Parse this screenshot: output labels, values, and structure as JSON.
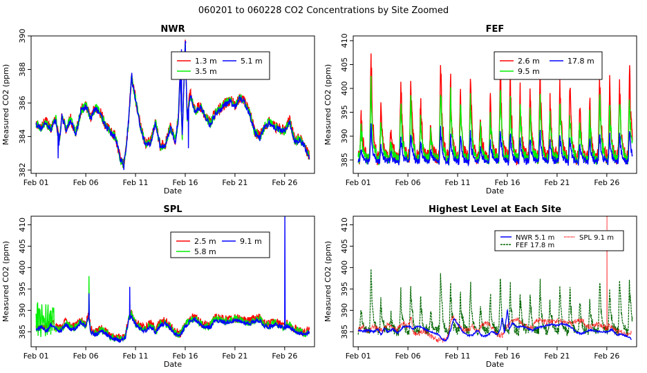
{
  "page_title": "060201  to  060228 CO2 Concentrations by Site Zoomed",
  "chart_data": [
    {
      "id": "nwr",
      "type": "line",
      "title": "NWR",
      "xlabel": "Date",
      "ylabel": "Measured CO2 (ppm)",
      "x_ticks": [
        "Feb 01",
        "Feb 06",
        "Feb 11",
        "Feb 16",
        "Feb 21",
        "Feb 26"
      ],
      "x_tick_days": [
        1,
        6,
        11,
        16,
        21,
        26
      ],
      "xlim": [
        0.5,
        29
      ],
      "ylim": [
        381.8,
        390
      ],
      "y_ticks": [
        382,
        384,
        386,
        388,
        390
      ],
      "legend": {
        "position": "top-right",
        "entries": [
          {
            "name": "1.3 m",
            "color": "#ff0000"
          },
          {
            "name": "5.1 m",
            "color": "#0000ff"
          },
          {
            "name": "3.5 m",
            "color": "#00ee00"
          }
        ]
      },
      "series": [
        {
          "name": "1.3 m",
          "color": "#ff0000",
          "offset": 0.08,
          "noise": 0.15
        },
        {
          "name": "3.5 m",
          "color": "#00ee00",
          "offset": 0.04,
          "noise": 0.1
        },
        {
          "name": "5.1 m",
          "color": "#0000ff",
          "offset": 0,
          "noise": 0
        }
      ],
      "x": [
        1,
        1.5,
        2,
        2.5,
        3,
        3.3,
        3.6,
        4,
        4.5,
        5,
        5.5,
        6,
        6.5,
        7,
        7.5,
        8,
        8.5,
        9,
        9.5,
        9.8,
        10,
        10.3,
        10.6,
        11,
        11.5,
        12,
        12.5,
        13,
        13.5,
        14,
        14.5,
        15,
        15.3,
        15.5,
        15.7,
        16,
        16.2,
        16.5,
        17,
        17.5,
        18,
        18.5,
        19,
        19.5,
        20,
        20.5,
        21,
        21.5,
        22,
        22.5,
        23,
        23.5,
        24,
        24.5,
        25,
        25.5,
        26,
        26.5,
        27,
        27.5,
        28,
        28.5
      ],
      "values": [
        384.7,
        384.5,
        384.8,
        384.4,
        385,
        383.6,
        385.2,
        384.4,
        385,
        384.1,
        385.5,
        385.8,
        385.1,
        385.7,
        385.3,
        384.6,
        384.2,
        383.9,
        382.6,
        382.3,
        383,
        384.9,
        387.5,
        386.2,
        384.5,
        383.5,
        383.6,
        384.8,
        383.3,
        383.5,
        384.5,
        383.7,
        385,
        387.8,
        384,
        389.6,
        385,
        386.5,
        385.4,
        385.8,
        385.2,
        384.7,
        385.3,
        385.6,
        385.9,
        386.1,
        385.8,
        386.3,
        386,
        385.3,
        384.2,
        383.9,
        384.6,
        384.8,
        384.5,
        384.4,
        384.3,
        384.9,
        383.7,
        383.8,
        383.4,
        382.7
      ],
      "spikes": [
        [
          3.2,
          382.7
        ],
        [
          9.8,
          382
        ],
        [
          10.6,
          387.8
        ],
        [
          15.6,
          389.2
        ],
        [
          16,
          389.7
        ],
        [
          16.3,
          383.3
        ]
      ]
    },
    {
      "id": "fef",
      "type": "line",
      "title": "FEF",
      "xlabel": "Date",
      "ylabel": "Measured CO2 (ppm)",
      "x_ticks": [
        "Feb 01",
        "Feb 06",
        "Feb 11",
        "Feb 16",
        "Feb 21",
        "Feb 26"
      ],
      "x_tick_days": [
        1,
        6,
        11,
        16,
        21,
        26
      ],
      "xlim": [
        0.5,
        29
      ],
      "ylim": [
        382.2,
        411
      ],
      "y_ticks": [
        385,
        390,
        395,
        400,
        405,
        410
      ],
      "legend": {
        "position": "top-right",
        "entries": [
          {
            "name": "2.6 m",
            "color": "#ff0000"
          },
          {
            "name": "17.8 m",
            "color": "#0000ff"
          },
          {
            "name": "9.5 m",
            "color": "#00ee00"
          }
        ]
      },
      "series": [
        {
          "name": "2.6 m",
          "color": "#ff0000",
          "scale": 1.0
        },
        {
          "name": "9.5 m",
          "color": "#00ee00",
          "scale": 0.75
        },
        {
          "name": "17.8 m",
          "color": "#0000ff",
          "scale": 0.35
        }
      ],
      "base": 384.2,
      "peak_days": [
        1.3,
        2.3,
        3.3,
        4.3,
        5.3,
        6.3,
        7.3,
        8.3,
        9.3,
        10.3,
        11.3,
        12.3,
        13.3,
        14.3,
        15.3,
        16.3,
        17.3,
        18.3,
        19.3,
        20.3,
        21.3,
        22.3,
        23.3,
        24.3,
        25.3,
        26.3,
        27.3,
        28.3
      ],
      "peak_heights": [
        10,
        24,
        12,
        6,
        17,
        20,
        14,
        8,
        22,
        18,
        16,
        19,
        9,
        14,
        21,
        18,
        15,
        16,
        19,
        13,
        18,
        17,
        12,
        14,
        20,
        17,
        19,
        22
      ]
    },
    {
      "id": "spl",
      "type": "line",
      "title": "SPL",
      "xlabel": "Date",
      "ylabel": "Measured CO2 (ppm)",
      "x_ticks": [
        "Feb 01",
        "Feb 06",
        "Feb 11",
        "Feb 16",
        "Feb 21",
        "Feb 26"
      ],
      "x_tick_days": [
        1,
        6,
        11,
        16,
        21,
        26
      ],
      "xlim": [
        0.5,
        29
      ],
      "ylim": [
        381.5,
        412
      ],
      "y_ticks": [
        385,
        390,
        395,
        400,
        405,
        410
      ],
      "legend": {
        "position": "top-right",
        "entries": [
          {
            "name": "2.5 m",
            "color": "#ff0000"
          },
          {
            "name": "9.1 m",
            "color": "#0000ff"
          },
          {
            "name": "5.8 m",
            "color": "#00ee00"
          }
        ]
      },
      "series": [
        {
          "name": "2.5 m",
          "color": "#ff0000",
          "offset": 0.6,
          "noise": 0.5
        },
        {
          "name": "5.8 m",
          "color": "#00ee00",
          "offset": 0.3,
          "noise": 0.4
        },
        {
          "name": "9.1 m",
          "color": "#0000ff",
          "offset": 0,
          "noise": 0
        }
      ],
      "x": [
        1,
        1.5,
        2,
        2.5,
        3,
        3.5,
        4,
        4.5,
        5,
        5.5,
        6,
        6.3,
        6.5,
        7,
        7.5,
        8,
        8.5,
        9,
        9.5,
        10,
        10.3,
        10.6,
        11,
        11.5,
        12,
        12.5,
        13,
        13.5,
        14,
        14.5,
        15,
        15.5,
        16,
        16.5,
        17,
        17.5,
        18,
        18.5,
        19,
        19.5,
        20,
        20.5,
        21,
        21.5,
        22,
        22.5,
        23,
        23.5,
        24,
        24.5,
        25,
        25.5,
        26,
        26.2,
        26.5,
        27,
        27.5,
        28,
        28.5
      ],
      "values": [
        385.3,
        386.2,
        385,
        386.5,
        385.5,
        385.2,
        386.8,
        385.5,
        385.7,
        387.2,
        386.2,
        388.5,
        385,
        384.3,
        385.1,
        384.6,
        383.6,
        383.2,
        382.9,
        383.8,
        387.5,
        388.6,
        386.7,
        385.6,
        385.2,
        386.4,
        384.8,
        386.6,
        386.9,
        385.7,
        384.4,
        384.1,
        386.3,
        387.5,
        387.9,
        386.6,
        386.1,
        386,
        387.8,
        387.5,
        387.2,
        387.4,
        387.6,
        387.4,
        387.1,
        386.9,
        387.6,
        387.6,
        386.3,
        386.2,
        386.8,
        386.3,
        385.7,
        386.4,
        386.1,
        385.2,
        384.8,
        384.2,
        384.8
      ],
      "spikes": [
        [
          10.4,
          395.5
        ],
        [
          6.3,
          394
        ],
        [
          26,
          412
        ]
      ],
      "green_burst": {
        "from": 1.0,
        "to": 2.8,
        "low": 383.6,
        "high": 392
      }
    },
    {
      "id": "highest",
      "type": "line",
      "title": "Highest Level at Each Site",
      "xlabel": "Date",
      "ylabel": "Measured CO2 (ppm)",
      "x_ticks": [
        "Feb 01",
        "Feb 06",
        "Feb 11",
        "Feb 16",
        "Feb 21",
        "Feb 26"
      ],
      "x_tick_days": [
        1,
        6,
        11,
        16,
        21,
        26
      ],
      "xlim": [
        0.5,
        29
      ],
      "ylim": [
        381.5,
        412
      ],
      "y_ticks": [
        385,
        390,
        395,
        400,
        405,
        410
      ],
      "legend": {
        "position": "top-right",
        "entries": [
          {
            "name": "NWR  5.1 m",
            "color": "#0000ff",
            "style": "solid"
          },
          {
            "name": "SPL  9.1 m",
            "color": "#ff0000",
            "style": "dotted"
          },
          {
            "name": "FEF  17.8 m",
            "color": "#006600",
            "style": "dashed"
          }
        ]
      },
      "series": [
        {
          "name": "FEF  17.8 m",
          "color": "#006600"
        },
        {
          "name": "SPL  9.1 m",
          "color": "#ff0000"
        },
        {
          "name": "NWR  5.1 m",
          "color": "#0000ff"
        }
      ]
    }
  ]
}
